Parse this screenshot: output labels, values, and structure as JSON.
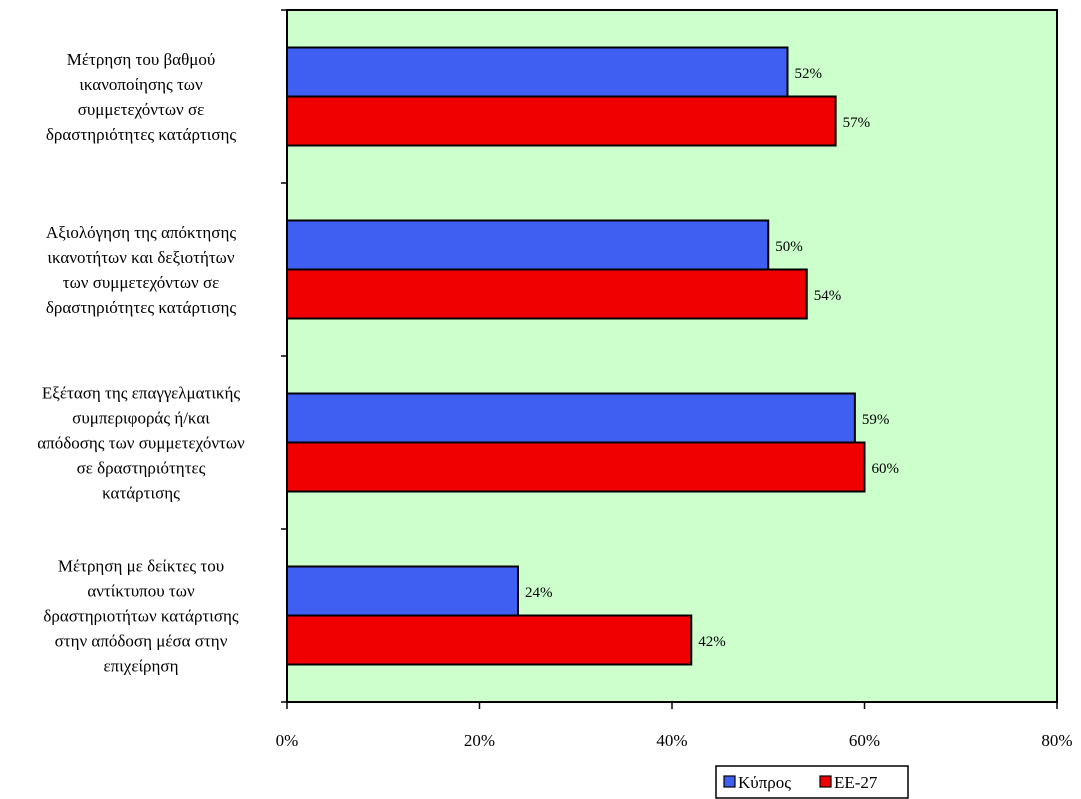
{
  "chart_data": {
    "type": "bar",
    "orientation": "horizontal",
    "categories": [
      [
        "Μέτρηση του βαθμού",
        "ικανοποίησης των",
        "συμμετεχόντων σε",
        "δραστηριότητες κατάρτισης"
      ],
      [
        "Αξιολόγηση της απόκτησης",
        "ικανοτήτων και δεξιοτήτων",
        "των συμμετεχόντων σε",
        "δραστηριότητες κατάρτισης"
      ],
      [
        "Εξέταση της επαγγελματικής",
        "συμπεριφοράς ή/και",
        "απόδοσης των συμμετεχόντων",
        "σε δραστηριότητες",
        "κατάρτισης"
      ],
      [
        "Μέτρηση με δείκτες του",
        "αντίκτυπου των",
        "δραστηριοτήτων κατάρτισης",
        "στην απόδοση μέσα στην",
        "επιχείρηση"
      ]
    ],
    "series": [
      {
        "name": "Κύπρος",
        "color": "#3f5ff2",
        "values": [
          52,
          50,
          59,
          24
        ],
        "labels": [
          "52%",
          "50%",
          "59%",
          "24%"
        ]
      },
      {
        "name": "ΕΕ-27",
        "color": "#f00000",
        "values": [
          57,
          54,
          60,
          42
        ],
        "labels": [
          "57%",
          "54%",
          "60%",
          "42%"
        ]
      }
    ],
    "xlim": [
      0,
      80
    ],
    "xticks": [
      0,
      20,
      40,
      60,
      80
    ],
    "xtick_labels": [
      "0%",
      "20%",
      "40%",
      "60%",
      "80%"
    ],
    "plot_background": "#ccffcc",
    "grid": false,
    "legend_position": "bottom-right"
  }
}
